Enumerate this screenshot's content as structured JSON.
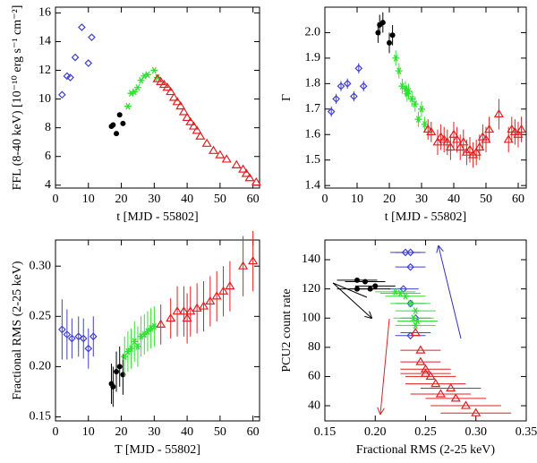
{
  "chart_data": [
    {
      "type": "scatter",
      "xlabel": "t [MJD - 55802]",
      "ylabel": "FFL (8-40 keV) [10⁻¹⁰ erg s⁻¹ cm⁻²]",
      "xlim": [
        0,
        62
      ],
      "ylim": [
        3.8,
        16.4
      ],
      "xticks": [
        0,
        10,
        20,
        30,
        40,
        50,
        60
      ],
      "yticks": [
        4,
        6,
        8,
        10,
        12,
        14,
        16
      ],
      "series": [
        {
          "color": "#4040d0",
          "marker": "diamond",
          "x": [
            2,
            3.5,
            4.5,
            6,
            8,
            10,
            11
          ],
          "y": [
            10.3,
            11.6,
            11.5,
            12.9,
            15,
            12.5,
            14.3
          ]
        },
        {
          "color": "#000000",
          "marker": "circle",
          "x": [
            17,
            17.5,
            18.5,
            19.5,
            20.5
          ],
          "y": [
            8.1,
            8.2,
            7.6,
            8.9,
            8.3
          ]
        },
        {
          "color": "#30e030",
          "marker": "asterisk",
          "x": [
            22,
            23,
            24,
            25,
            26,
            27,
            28,
            30,
            31
          ],
          "y": [
            9.5,
            10.4,
            10.5,
            10.8,
            11.3,
            11.6,
            11.7,
            12,
            11.5
          ]
        },
        {
          "color": "#e02020",
          "marker": "triangle",
          "x": [
            31,
            32,
            33,
            34,
            35,
            36,
            37,
            38,
            39,
            40,
            41,
            42,
            43,
            44,
            46,
            48,
            50,
            52,
            55,
            57,
            58,
            59,
            61
          ],
          "y": [
            11.4,
            11.2,
            11,
            10.8,
            10.5,
            10.1,
            9.8,
            9.5,
            9.1,
            8.7,
            8.4,
            8.1,
            7.8,
            7.4,
            6.9,
            6.4,
            6.1,
            5.8,
            5.4,
            5.1,
            4.8,
            4.5,
            4.2
          ]
        }
      ]
    },
    {
      "type": "scatter",
      "xlabel": "t [MJD - 55802]",
      "ylabel": "Γ",
      "xlim": [
        0,
        62.5
      ],
      "ylim": [
        1.39,
        2.1
      ],
      "xticks": [
        0,
        10,
        20,
        30,
        40,
        50,
        60
      ],
      "yticks": [
        1.4,
        1.5,
        1.6,
        1.7,
        1.8,
        1.9,
        {
          "value": 2,
          "label": "2.0"
        }
      ],
      "series": [
        {
          "color": "#4040d0",
          "marker": "diamond",
          "x": [
            2,
            3.5,
            5,
            7,
            9,
            10.5,
            12
          ],
          "y": [
            1.69,
            1.74,
            1.79,
            1.8,
            1.75,
            1.86,
            1.79
          ],
          "yerr": [
            0.02,
            0.02,
            0.02,
            0.02,
            0.02,
            0.02,
            0.02
          ]
        },
        {
          "color": "#000000",
          "marker": "circle",
          "x": [
            16.5,
            17,
            18,
            20,
            21
          ],
          "y": [
            2.0,
            2.03,
            2.04,
            1.96,
            1.99
          ],
          "yerr": [
            0.04,
            0.04,
            0.04,
            0.04,
            0.04
          ]
        },
        {
          "color": "#30e030",
          "marker": "asterisk",
          "x": [
            22,
            23,
            24,
            25,
            25.5,
            26,
            27,
            28,
            29,
            30,
            31
          ],
          "y": [
            1.9,
            1.85,
            1.79,
            1.78,
            1.76,
            1.77,
            1.74,
            1.72,
            1.66,
            1.7,
            1.64
          ],
          "yerr": [
            0.03,
            0.03,
            0.03,
            0.03,
            0.03,
            0.03,
            0.03,
            0.03,
            0.03,
            0.03,
            0.03
          ]
        },
        {
          "color": "#e02020",
          "marker": "triangle",
          "x": [
            32,
            33,
            35,
            36,
            37,
            38,
            39,
            40,
            41,
            42,
            43,
            44,
            45,
            46,
            47,
            48,
            49,
            50,
            51,
            54,
            57,
            58,
            59,
            60,
            61
          ],
          "y": [
            1.62,
            1.61,
            1.57,
            1.59,
            1.58,
            1.57,
            1.55,
            1.6,
            1.58,
            1.55,
            1.57,
            1.53,
            1.54,
            1.52,
            1.53,
            1.55,
            1.59,
            1.58,
            1.62,
            1.68,
            1.58,
            1.62,
            1.61,
            1.6,
            1.62
          ],
          "yerr": [
            0.04,
            0.04,
            0.05,
            0.05,
            0.05,
            0.05,
            0.05,
            0.05,
            0.05,
            0.05,
            0.05,
            0.05,
            0.05,
            0.05,
            0.05,
            0.05,
            0.05,
            0.05,
            0.05,
            0.06,
            0.05,
            0.05,
            0.05,
            0.05,
            0.05
          ]
        }
      ]
    },
    {
      "type": "scatter",
      "xlabel": "T [MJD - 55802]",
      "ylabel": "Fractional RMS (2-25 keV)",
      "xlim": [
        0,
        62
      ],
      "ylim": [
        0.146,
        0.326
      ],
      "xticks": [
        0,
        10,
        20,
        30,
        40,
        50,
        60
      ],
      "yticks": [
        0.15,
        {
          "value": 0.2,
          "label": "0.20"
        },
        0.25,
        {
          "value": 0.3,
          "label": "0.30"
        }
      ],
      "series": [
        {
          "color": "#4040d0",
          "marker": "diamond",
          "x": [
            2,
            3.5,
            5,
            7,
            8.5,
            10,
            11.5
          ],
          "y": [
            0.237,
            0.232,
            0.228,
            0.23,
            0.228,
            0.218,
            0.23
          ],
          "yerr": [
            0.03,
            0.025,
            0.02,
            0.02,
            0.02,
            0.02,
            0.02
          ]
        },
        {
          "color": "#000000",
          "marker": "circle",
          "x": [
            17,
            17.5,
            18.5,
            19.5,
            20.5
          ],
          "y": [
            0.183,
            0.18,
            0.195,
            0.2,
            0.192
          ],
          "yerr": [
            0.02,
            0.02,
            0.02,
            0.02,
            0.02
          ]
        },
        {
          "color": "#30e030",
          "marker": "asterisk",
          "x": [
            21,
            22,
            23,
            24,
            25,
            26,
            27,
            28,
            29,
            30
          ],
          "y": [
            0.21,
            0.215,
            0.218,
            0.225,
            0.22,
            0.23,
            0.232,
            0.235,
            0.238,
            0.24
          ],
          "yerr": [
            0.02,
            0.02,
            0.02,
            0.02,
            0.02,
            0.02,
            0.02,
            0.02,
            0.02,
            0.02
          ]
        },
        {
          "color": "#e02020",
          "marker": "triangle",
          "x": [
            32,
            35,
            37,
            39,
            40,
            41,
            43,
            45,
            47,
            49,
            51,
            53,
            57,
            60
          ],
          "y": [
            0.242,
            0.248,
            0.255,
            0.255,
            0.248,
            0.255,
            0.258,
            0.26,
            0.265,
            0.27,
            0.275,
            0.28,
            0.3,
            0.305
          ],
          "yerr": [
            0.02,
            0.02,
            0.025,
            0.025,
            0.025,
            0.025,
            0.025,
            0.025,
            0.025,
            0.025,
            0.025,
            0.025,
            0.03,
            0.03
          ]
        }
      ]
    },
    {
      "type": "scatter",
      "xlabel": "Fractional RMS (2-25 keV)",
      "ylabel": "PCU2 count rate",
      "xlim": [
        0.15,
        0.35
      ],
      "ylim": [
        29.6,
        153.5
      ],
      "xticks": [
        0.15,
        {
          "value": 0.2,
          "label": "0.20"
        },
        0.25,
        {
          "value": 0.3,
          "label": "0.30"
        },
        0.35
      ],
      "yticks": [
        40,
        60,
        80,
        100,
        120,
        140
      ],
      "series": [
        {
          "color": "#4040d0",
          "marker": "diamond",
          "x": [
            0.23,
            0.235,
            0.235,
            0.228,
            0.235,
            0.24,
            0.235
          ],
          "y": [
            145,
            145,
            135,
            120,
            110,
            100,
            88
          ],
          "xerr": [
            0.015,
            0.015,
            0.015,
            0.015,
            0.015,
            0.015,
            0.015
          ]
        },
        {
          "color": "#000000",
          "marker": "circle",
          "x": [
            0.182,
            0.19,
            0.2,
            0.182,
            0.195
          ],
          "y": [
            126,
            125,
            122,
            120,
            120
          ],
          "xerr": [
            0.02,
            0.02,
            0.02,
            0.02,
            0.02
          ]
        },
        {
          "color": "#30e030",
          "marker": "asterisk",
          "x": [
            0.22,
            0.225,
            0.23,
            0.235,
            0.24,
            0.238,
            0.24,
            0.242
          ],
          "y": [
            118,
            117,
            115,
            110,
            105,
            100,
            95,
            98
          ],
          "xerr": [
            0.02,
            0.02,
            0.02,
            0.02,
            0.02,
            0.02,
            0.02,
            0.02
          ]
        },
        {
          "color": "#e02020",
          "marker": "triangle",
          "x": [
            0.24,
            0.245,
            0.245,
            0.25,
            0.25,
            0.255,
            0.26,
            0.265,
            0.275,
            0.28,
            0.3,
            0.29
          ],
          "y": [
            90,
            78,
            70,
            65,
            62,
            60,
            55,
            48,
            52,
            45,
            35,
            40
          ],
          "xerr": [
            0.015,
            0.02,
            0.02,
            0.025,
            0.025,
            0.025,
            0.03,
            0.03,
            0.03,
            0.03,
            0.035,
            0.035
          ]
        }
      ]
    }
  ]
}
